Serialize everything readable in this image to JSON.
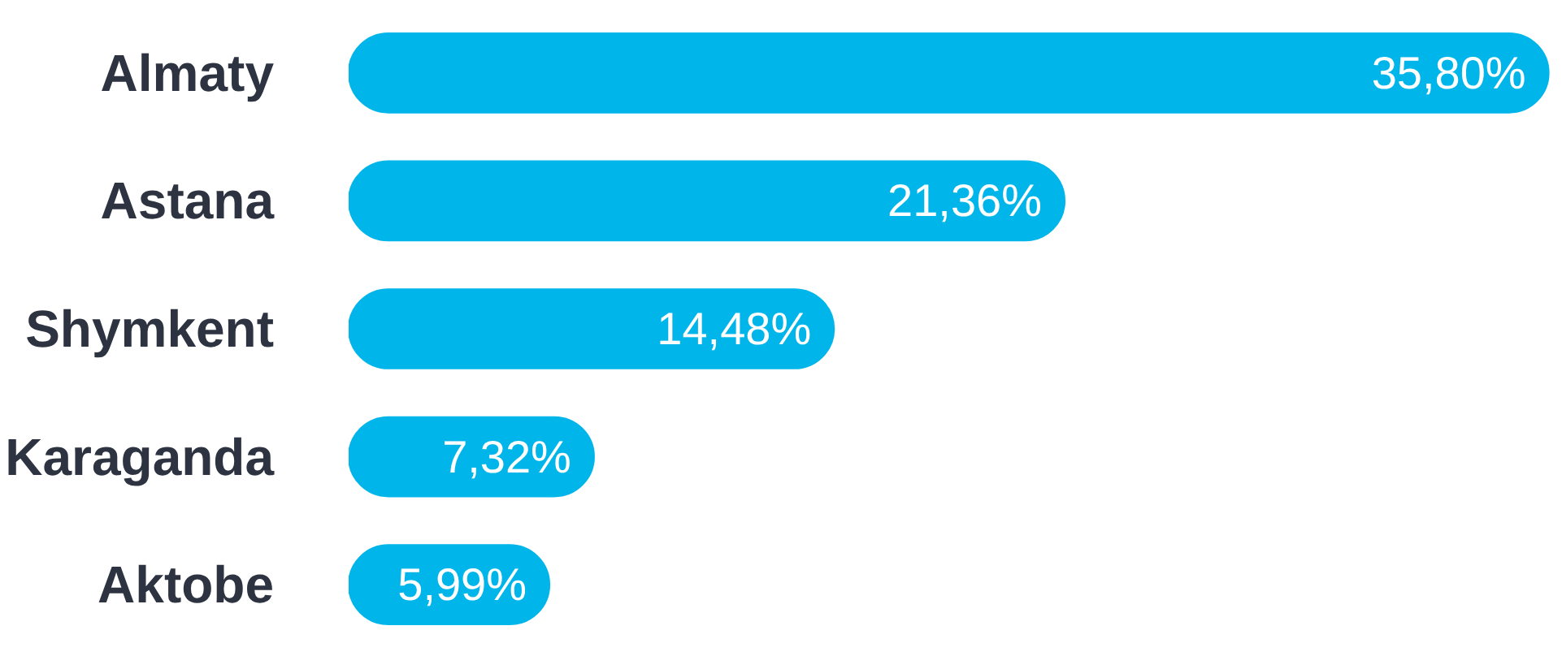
{
  "chart_data": {
    "type": "bar",
    "orientation": "horizontal",
    "categories": [
      "Almaty",
      "Astana",
      "Shymkent",
      "Karaganda",
      "Aktobe"
    ],
    "values": [
      35.8,
      21.36,
      14.48,
      7.32,
      5.99
    ],
    "value_labels": [
      "35,80%",
      "21,36%",
      "14,48%",
      "7,32%",
      "5,99%"
    ],
    "color": "#00b5e9"
  }
}
